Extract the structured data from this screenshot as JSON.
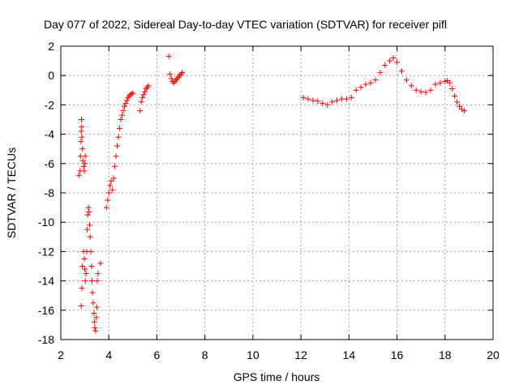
{
  "chart_data": {
    "type": "scatter",
    "title": "Day 077 of 2022, Sidereal Day-to-day VTEC variation (SDTVAR) for receiver pifl",
    "xlabel": "GPS time / hours",
    "ylabel": "SDTVAR / TECUs",
    "xlim": [
      2,
      20
    ],
    "ylim": [
      -18,
      2
    ],
    "xticks": [
      2,
      4,
      6,
      8,
      10,
      12,
      14,
      16,
      18,
      20
    ],
    "yticks": [
      -18,
      -16,
      -14,
      -12,
      -10,
      -8,
      -6,
      -4,
      -2,
      0,
      2
    ],
    "grid": true,
    "marker": "+",
    "color": "#ff0000",
    "series": [
      {
        "name": "SDTVAR",
        "x": [
          2.75,
          2.8,
          2.82,
          2.84,
          2.85,
          2.86,
          2.87,
          2.88,
          2.9,
          2.92,
          2.95,
          2.98,
          3.0,
          3.02,
          2.85,
          2.88,
          2.9,
          2.95,
          2.98,
          3.0,
          3.02,
          3.05,
          3.08,
          3.1,
          3.12,
          3.15,
          3.18,
          3.2,
          3.22,
          3.25,
          3.28,
          3.3,
          3.32,
          3.35,
          3.38,
          3.4,
          3.42,
          3.45,
          3.48,
          3.5,
          3.52,
          3.55,
          3.65,
          3.9,
          3.95,
          4.0,
          4.05,
          4.1,
          4.15,
          4.2,
          4.25,
          4.3,
          4.35,
          4.4,
          4.45,
          4.5,
          4.55,
          4.6,
          4.65,
          4.7,
          4.75,
          4.8,
          4.85,
          4.9,
          4.95,
          5.0,
          5.3,
          5.35,
          5.4,
          5.45,
          5.5,
          5.55,
          5.6,
          5.65,
          6.5,
          6.55,
          6.6,
          6.65,
          6.7,
          6.75,
          6.8,
          6.85,
          6.9,
          6.95,
          7.0,
          7.05,
          12.1,
          12.3,
          12.5,
          12.7,
          12.9,
          13.1,
          13.3,
          13.5,
          13.7,
          13.9,
          14.1,
          14.3,
          14.5,
          14.7,
          14.9,
          15.1,
          15.3,
          15.5,
          15.7,
          15.85,
          16.0,
          16.2,
          16.4,
          16.6,
          16.8,
          17.0,
          17.2,
          17.4,
          17.6,
          17.8,
          18.0,
          18.1,
          18.2,
          18.3,
          18.4,
          18.5,
          18.6,
          18.7,
          18.8
        ],
        "y": [
          -6.8,
          -6.5,
          -5.5,
          -4.5,
          -3.8,
          -3.0,
          -3.5,
          -4.2,
          -5.0,
          -5.8,
          -6.2,
          -6.5,
          -6.0,
          -5.5,
          -15.7,
          -14.5,
          -13.0,
          -12.0,
          -12.5,
          -13.2,
          -14.0,
          -13.5,
          -12.0,
          -10.5,
          -9.5,
          -9.0,
          -9.3,
          -10.2,
          -11.0,
          -12.0,
          -13.0,
          -14.0,
          -14.8,
          -15.5,
          -16.2,
          -16.8,
          -17.2,
          -17.4,
          -16.5,
          -15.8,
          -14.0,
          -13.5,
          -12.8,
          -9.0,
          -8.5,
          -8.0,
          -7.5,
          -7.2,
          -7.8,
          -7.0,
          -6.2,
          -5.5,
          -4.8,
          -4.2,
          -3.6,
          -3.0,
          -2.7,
          -2.4,
          -2.1,
          -1.9,
          -1.7,
          -1.5,
          -1.4,
          -1.3,
          -1.25,
          -1.2,
          -2.4,
          -1.8,
          -1.5,
          -1.3,
          -1.1,
          -0.9,
          -0.8,
          -0.7,
          1.3,
          0.1,
          -0.2,
          -0.4,
          -0.5,
          -0.4,
          -0.3,
          -0.2,
          -0.1,
          0.0,
          0.1,
          0.2,
          -1.5,
          -1.6,
          -1.7,
          -1.75,
          -1.9,
          -2.0,
          -1.8,
          -1.7,
          -1.6,
          -1.6,
          -1.5,
          -1.0,
          -0.8,
          -0.6,
          -0.5,
          -0.3,
          0.2,
          0.7,
          1.0,
          1.2,
          0.9,
          0.3,
          -0.3,
          -0.7,
          -1.0,
          -1.1,
          -1.15,
          -1.0,
          -0.6,
          -0.5,
          -0.4,
          -0.35,
          -0.5,
          -0.9,
          -1.4,
          -1.8,
          -2.1,
          -2.3,
          -2.4
        ]
      }
    ]
  }
}
